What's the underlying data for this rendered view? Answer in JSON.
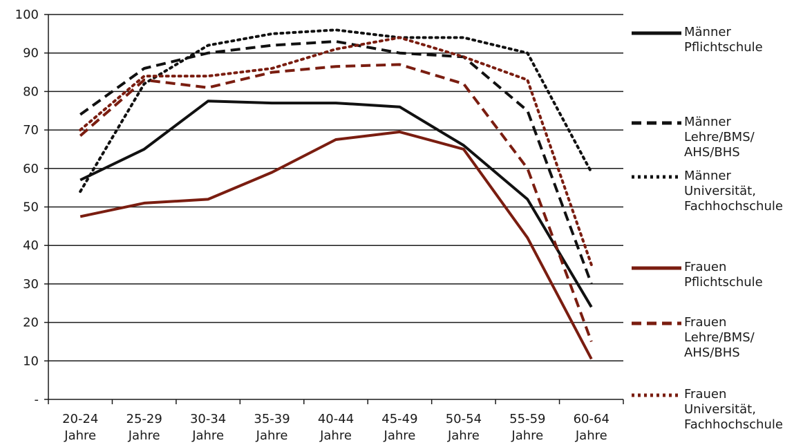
{
  "chart_data": {
    "type": "line",
    "categories": [
      "20-24 Jahre",
      "25-29 Jahre",
      "30-34 Jahre",
      "35-39 Jahre",
      "40-44 Jahre",
      "45-49 Jahre",
      "50-54 Jahre",
      "55-59 Jahre",
      "60-64 Jahre"
    ],
    "category_lines": [
      [
        "20-24",
        "Jahre"
      ],
      [
        "25-29",
        "Jahre"
      ],
      [
        "30-34",
        "Jahre"
      ],
      [
        "35-39",
        "Jahre"
      ],
      [
        "40-44",
        "Jahre"
      ],
      [
        "45-49",
        "Jahre"
      ],
      [
        "50-54",
        "Jahre"
      ],
      [
        "55-59",
        "Jahre"
      ],
      [
        "60-64",
        "Jahre"
      ]
    ],
    "y_ticks": [
      "-",
      "10",
      "20",
      "30",
      "40",
      "50",
      "60",
      "70",
      "80",
      "90",
      "100"
    ],
    "ylim": [
      0,
      100
    ],
    "grid": true,
    "legend_position": "right",
    "series": [
      {
        "name": "Männer Pflichtschule",
        "lines": [
          "Männer",
          "Pflichtschule"
        ],
        "color": "#111111",
        "dash": "solid",
        "values": [
          57,
          65,
          77.5,
          77,
          77,
          76,
          66,
          52,
          24
        ]
      },
      {
        "name": "Männer Lehre/BMS/ AHS/BHS",
        "lines": [
          "Männer",
          "Lehre/BMS/",
          "AHS/BHS"
        ],
        "color": "#111111",
        "dash": "dashed",
        "values": [
          74,
          86,
          90,
          92,
          93,
          90,
          89,
          75,
          30
        ]
      },
      {
        "name": "Männer Universität, Fachhochschule",
        "lines": [
          "Männer",
          "Universität,",
          "Fachhochschule"
        ],
        "color": "#111111",
        "dash": "dotted",
        "values": [
          54,
          82,
          92,
          95,
          96,
          94,
          94,
          90,
          59
        ]
      },
      {
        "name": "Frauen Pflichtschule",
        "lines": [
          "Frauen",
          "Pflichtschule"
        ],
        "color": "#7a1d10",
        "dash": "solid",
        "values": [
          47.5,
          51,
          52,
          59,
          67.5,
          69.5,
          65,
          42,
          10.5
        ]
      },
      {
        "name": "Frauen Lehre/BMS/ AHS/BHS",
        "lines": [
          "Frauen",
          "Lehre/BMS/",
          "AHS/BHS"
        ],
        "color": "#7a1d10",
        "dash": "dashed",
        "values": [
          68.5,
          83,
          81,
          85,
          86.5,
          87,
          82,
          60,
          15
        ]
      },
      {
        "name": "Frauen Universität, Fachhochschule",
        "lines": [
          "Frauen",
          "Universität,",
          "Fachhochschule"
        ],
        "color": "#7a1d10",
        "dash": "dotted",
        "values": [
          70,
          84,
          84,
          86,
          91,
          94,
          89,
          83,
          35
        ]
      }
    ]
  }
}
